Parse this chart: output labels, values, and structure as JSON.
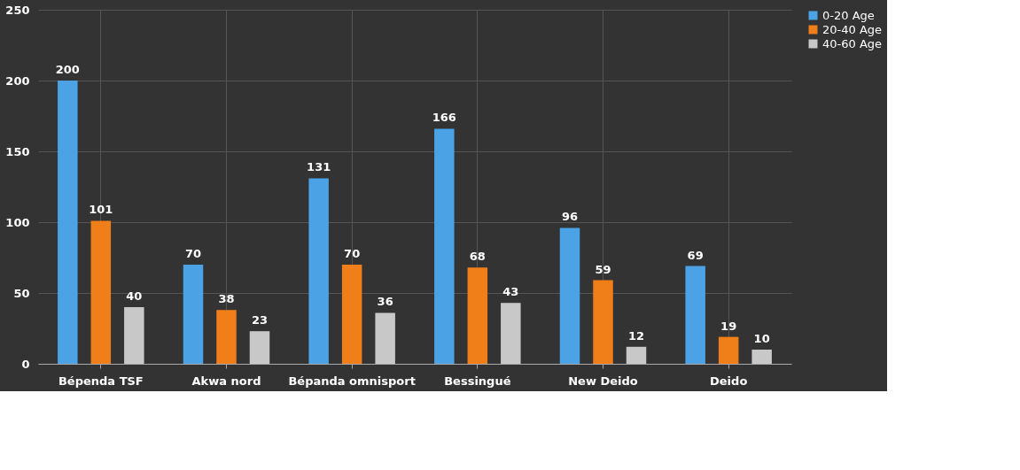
{
  "chart_data": {
    "type": "bar",
    "categories": [
      "Bépenda TSF",
      "Akwa nord",
      "Bépanda omnisport",
      "Bessingué",
      "New Deido",
      "Deido"
    ],
    "series": [
      {
        "name": "0-20 Age",
        "color": "#4ba3e6",
        "values": [
          200,
          70,
          131,
          166,
          96,
          69
        ]
      },
      {
        "name": "20-40 Age",
        "color": "#f07f1a",
        "values": [
          101,
          38,
          70,
          68,
          59,
          19
        ]
      },
      {
        "name": "40-60 Age",
        "color": "#c8c8c8",
        "values": [
          40,
          23,
          36,
          43,
          12,
          10
        ]
      }
    ],
    "ylim": [
      0,
      250
    ],
    "yticks": [
      0,
      50,
      100,
      150,
      200,
      250
    ],
    "grid": true,
    "legend": "right",
    "data_labels": true
  }
}
